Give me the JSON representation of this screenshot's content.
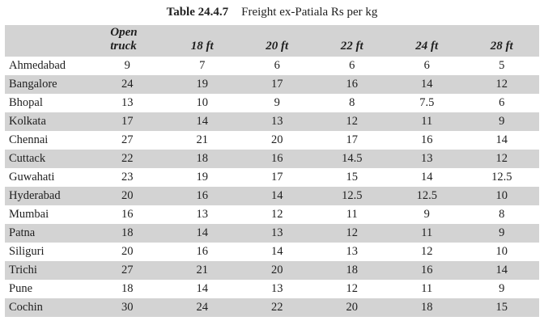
{
  "page_title": {
    "label": "Table 24.4.7",
    "caption": "Freight ex-Patiala Rs per kg"
  },
  "table": {
    "corner_header": "",
    "columns": [
      "Open truck",
      "18 ft",
      "20 ft",
      "22 ft",
      "24 ft",
      "28 ft"
    ],
    "rows": [
      {
        "city": "Ahmedabad",
        "values": [
          9,
          7,
          6,
          6,
          6,
          5
        ]
      },
      {
        "city": "Bangalore",
        "values": [
          24,
          19,
          17,
          16,
          14,
          12
        ]
      },
      {
        "city": "Bhopal",
        "values": [
          13,
          10,
          9,
          8,
          7.5,
          6
        ]
      },
      {
        "city": "Kolkata",
        "values": [
          17,
          14,
          13,
          12,
          11,
          9
        ]
      },
      {
        "city": "Chennai",
        "values": [
          27,
          21,
          20,
          17,
          16,
          14
        ]
      },
      {
        "city": "Cuttack",
        "values": [
          22,
          18,
          16,
          14.5,
          13,
          12
        ]
      },
      {
        "city": "Guwahati",
        "values": [
          23,
          19,
          17,
          15,
          14,
          12.5
        ]
      },
      {
        "city": "Hyderabad",
        "values": [
          20,
          16,
          14,
          12.5,
          12.5,
          10
        ]
      },
      {
        "city": "Mumbai",
        "values": [
          16,
          13,
          12,
          11,
          9,
          8
        ]
      },
      {
        "city": "Patna",
        "values": [
          18,
          14,
          13,
          12,
          11,
          9
        ]
      },
      {
        "city": "Siliguri",
        "values": [
          20,
          16,
          14,
          13,
          12,
          10
        ]
      },
      {
        "city": "Trichi",
        "values": [
          27,
          21,
          20,
          18,
          16,
          14
        ]
      },
      {
        "city": "Pune",
        "values": [
          18,
          14,
          13,
          12,
          11,
          9
        ]
      },
      {
        "city": "Cochin",
        "values": [
          30,
          24,
          22,
          20,
          18,
          15
        ]
      }
    ]
  },
  "colors": {
    "stripe": "#d3d3d3",
    "text": "#1f1f1f",
    "background": "#ffffff"
  }
}
